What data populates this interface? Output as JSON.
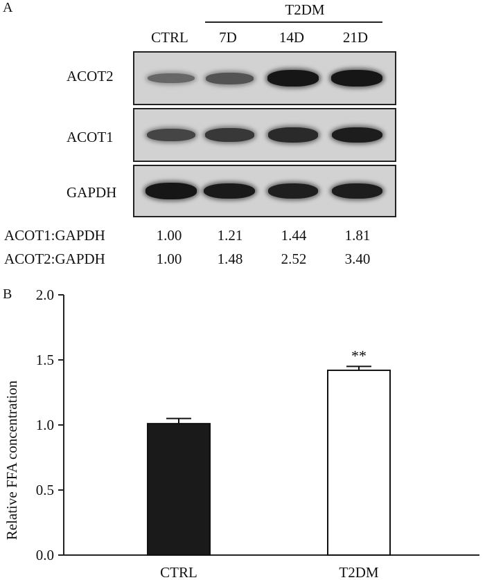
{
  "panel_a": {
    "label": "A",
    "group_label": "T2DM",
    "lanes": [
      "CTRL",
      "7D",
      "14D",
      "21D"
    ],
    "blots": [
      {
        "name": "ACOT2",
        "band_intensity": [
          0.35,
          0.5,
          0.95,
          0.95
        ]
      },
      {
        "name": "ACOT1",
        "band_intensity": [
          0.6,
          0.7,
          0.8,
          0.9
        ]
      },
      {
        "name": "GAPDH",
        "band_intensity": [
          0.95,
          0.92,
          0.88,
          0.9
        ]
      }
    ],
    "ratios": [
      {
        "name": "ACOT1:GAPDH",
        "values": [
          "1.00",
          "1.21",
          "1.44",
          "1.81"
        ]
      },
      {
        "name": "ACOT2:GAPDH",
        "values": [
          "1.00",
          "1.48",
          "2.52",
          "3.40"
        ]
      }
    ]
  },
  "panel_b": {
    "label": "B"
  },
  "chart_data": {
    "type": "bar",
    "categories": [
      "CTRL",
      "T2DM"
    ],
    "values": [
      1.01,
      1.42
    ],
    "errors": [
      0.04,
      0.03
    ],
    "annotations": [
      "",
      "**"
    ],
    "bar_colors": [
      "#1a1a1a",
      "#ffffff"
    ],
    "title": "",
    "xlabel": "",
    "ylabel": "Relative FFA concentration",
    "ylim": [
      0,
      2.0
    ],
    "yticks": [
      "0.0",
      "0.5",
      "1.0",
      "1.5",
      "2.0"
    ],
    "grid": false
  }
}
